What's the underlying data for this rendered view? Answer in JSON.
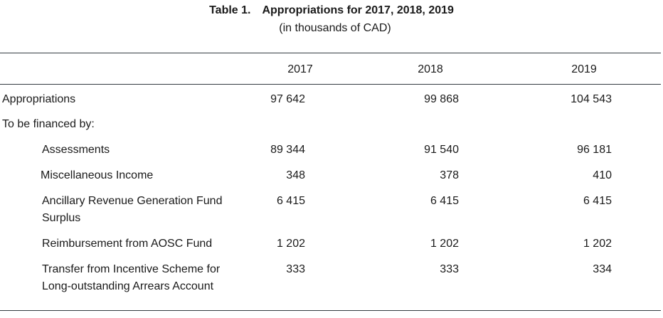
{
  "table": {
    "label": "Table 1.",
    "title": "Appropriations for 2017, 2018, 2019",
    "subtitle": "(in thousands of CAD)",
    "columns": [
      "2017",
      "2018",
      "2019"
    ],
    "rows": [
      {
        "label": "Appropriations",
        "values": [
          "97 642",
          "99 868",
          "104 543"
        ]
      },
      {
        "label": "To be financed by:",
        "values": [
          "",
          "",
          ""
        ]
      },
      {
        "label": "Assessments",
        "values": [
          "89 344",
          "91 540",
          "96 181"
        ]
      },
      {
        "label": "Miscellaneous Income",
        "values": [
          "348",
          "378",
          "410"
        ]
      },
      {
        "label_line1": "Ancillary Revenue Generation Fund",
        "label_line2": "Surplus",
        "values": [
          "6 415",
          "6 415",
          "6 415"
        ]
      },
      {
        "label": "Reimbursement from AOSC Fund",
        "values": [
          "1 202",
          "1 202",
          "1 202"
        ]
      },
      {
        "label_line1": "Transfer from Incentive Scheme for",
        "label_line2": "Long-outstanding Arrears Account",
        "values": [
          "333",
          "333",
          "334"
        ]
      }
    ]
  }
}
